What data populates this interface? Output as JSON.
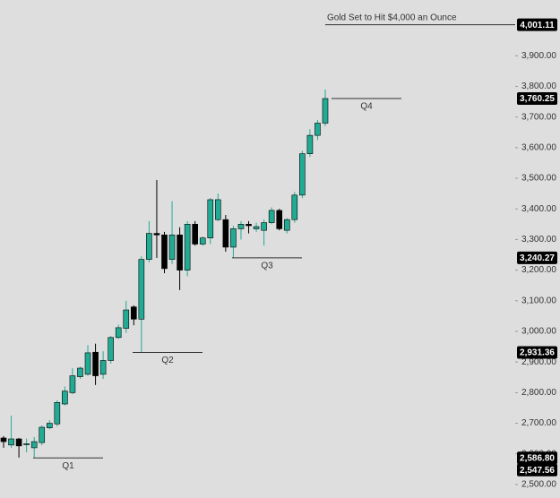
{
  "chart_data": {
    "type": "candlestick",
    "series": {
      "open": [
        2652,
        2629,
        2649,
        2630,
        2620,
        2637,
        2685,
        2698,
        2763,
        2800,
        2852,
        2860,
        2932,
        2860,
        2905,
        2980,
        3010,
        3080,
        3040,
        3235,
        3320,
        3315,
        3235,
        3315,
        3200,
        3350,
        3285,
        3305,
        3365,
        3365,
        3275,
        3335,
        3350,
        3335,
        3330,
        3355,
        3395,
        3330,
        3365,
        3445,
        3580,
        3640,
        3680
      ],
      "high": [
        2658,
        2725,
        2652,
        2650,
        2655,
        2693,
        2710,
        2775,
        2820,
        2880,
        2885,
        2955,
        2960,
        2935,
        2985,
        3022,
        3100,
        3085,
        3245,
        3360,
        3494,
        3325,
        3425,
        3340,
        3360,
        3360,
        3310,
        3435,
        3450,
        3380,
        3345,
        3360,
        3360,
        3355,
        3365,
        3405,
        3400,
        3370,
        3455,
        3590,
        3660,
        3690,
        3790
      ],
      "low": [
        2620,
        2620,
        2588,
        2605,
        2587,
        2628,
        2680,
        2690,
        2758,
        2795,
        2845,
        2855,
        2825,
        2845,
        2895,
        2975,
        2995,
        3020,
        2930,
        3225,
        3240,
        3190,
        3220,
        3135,
        3180,
        3280,
        3280,
        3285,
        3360,
        3260,
        3240,
        3300,
        3320,
        3325,
        3280,
        3350,
        3330,
        3320,
        3355,
        3435,
        3570,
        3625,
        3670
      ],
      "close": [
        2640,
        2649,
        2626,
        2633,
        2640,
        2687,
        2700,
        2768,
        2805,
        2855,
        2880,
        2930,
        2855,
        2905,
        2980,
        3012,
        3070,
        3040,
        3235,
        3320,
        3315,
        3205,
        3315,
        3200,
        3350,
        3285,
        3305,
        3430,
        3430,
        3275,
        3335,
        3350,
        3345,
        3342,
        3355,
        3395,
        3335,
        3365,
        3445,
        3580,
        3640,
        3680,
        3760.25
      ]
    },
    "up_color": "#22ab94",
    "down_color": "#000000",
    "ylim": [
      2456,
      4082
    ],
    "yticks": [
      {
        "value": 2500,
        "label": "2,500.00"
      },
      {
        "value": 2600,
        "label": "2,600.00"
      },
      {
        "value": 2700,
        "label": "2,700.00"
      },
      {
        "value": 2800,
        "label": "2,800.00"
      },
      {
        "value": 2900,
        "label": "2,900.00"
      },
      {
        "value": 3000,
        "label": "3,000.00"
      },
      {
        "value": 3100,
        "label": "3,100.00"
      },
      {
        "value": 3200,
        "label": "3,200.00"
      },
      {
        "value": 3300,
        "label": "3,300.00"
      },
      {
        "value": 3400,
        "label": "3,400.00"
      },
      {
        "value": 3500,
        "label": "3,500.00"
      },
      {
        "value": 3600,
        "label": "3,600.00"
      },
      {
        "value": 3700,
        "label": "3,700.00"
      },
      {
        "value": 3800,
        "label": "3,800.00"
      },
      {
        "value": 3900,
        "label": "3,900.00"
      }
    ],
    "levels": [
      {
        "value": 4001.11,
        "label": "4,001.11",
        "text": "Gold Set to Hit $4,000 an Ounce"
      },
      {
        "value": 3760.25,
        "label": "3,760.25",
        "text": "Q4"
      },
      {
        "value": 3240.27,
        "label": "3,240.27",
        "text": "Q3"
      },
      {
        "value": 2931.36,
        "label": "2,931.36",
        "text": "Q2"
      },
      {
        "value": 2586.8,
        "label": "2,586.80",
        "text": "Q1"
      },
      {
        "value": 2547.56,
        "label": "2,547.56"
      }
    ]
  }
}
